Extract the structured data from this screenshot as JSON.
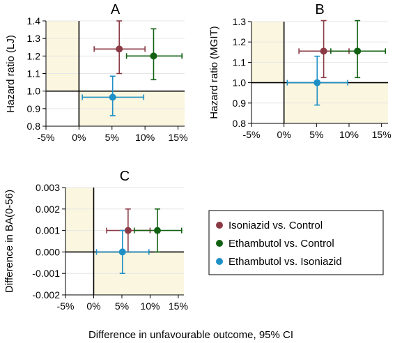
{
  "colors": {
    "background": "#ffffff",
    "shade": "#fbf6df",
    "grid": "#e6e6e6",
    "axis": "#000000",
    "isoniazid_vs_control": "#8b3a45",
    "ethambutol_vs_control": "#126112",
    "ethambutol_vs_isoniazid": "#1e90c6"
  },
  "figure": {
    "xcaption": "Difference in unfavourable outcome, 95% CI"
  },
  "legend": {
    "entries": [
      {
        "label": "Isoniazid vs. Control",
        "color": "#8b3a45"
      },
      {
        "label": "Ethambutol vs. Control",
        "color": "#126112"
      },
      {
        "label": "Ethambutol vs. Isoniazid",
        "color": "#1e90c6"
      }
    ]
  },
  "chart_data": [
    {
      "panel": "A",
      "type": "scatter",
      "title": "A",
      "xlabel": "",
      "ylabel": "Hazard ratio (LJ)",
      "xlim": [
        -5,
        16
      ],
      "ylim": [
        0.8,
        1.4
      ],
      "xticks": [
        -5,
        0,
        5,
        10,
        15
      ],
      "xticklabels": [
        "-5%",
        "0%",
        "5%",
        "10%",
        "15%"
      ],
      "yticks": [
        0.8,
        0.9,
        1.0,
        1.1,
        1.2,
        1.3,
        1.4
      ],
      "yticklabels": [
        "0.8",
        "0.9",
        "1.0",
        "1.1",
        "1.2",
        "1.3",
        "1.4"
      ],
      "ref_x": 0,
      "ref_y": 1.0,
      "grid": true,
      "series": [
        {
          "name": "Isoniazid vs. Control",
          "x": 6.1,
          "x_lo": 2.3,
          "x_hi": 10.0,
          "y": 1.24,
          "y_lo": 1.1,
          "y_hi": 1.4
        },
        {
          "name": "Ethambutol vs. Control",
          "x": 11.3,
          "x_lo": 7.2,
          "x_hi": 15.6,
          "y": 1.2,
          "y_lo": 1.065,
          "y_hi": 1.355
        },
        {
          "name": "Ethambutol vs. Isoniazid",
          "x": 5.1,
          "x_lo": 0.5,
          "x_hi": 9.8,
          "y": 0.965,
          "y_lo": 0.86,
          "y_hi": 1.085
        }
      ]
    },
    {
      "panel": "B",
      "type": "scatter",
      "title": "B",
      "xlabel": "",
      "ylabel": "Hazard ratio (MGIT)",
      "xlim": [
        -5,
        16
      ],
      "ylim": [
        0.8,
        1.3
      ],
      "xticks": [
        -5,
        0,
        5,
        10,
        15
      ],
      "xticklabels": [
        "-5%",
        "0%",
        "5%",
        "10%",
        "15%"
      ],
      "yticks": [
        0.8,
        0.9,
        1.0,
        1.1,
        1.2,
        1.3
      ],
      "yticklabels": [
        "0.8",
        "0.9",
        "1.0",
        "1.1",
        "1.2",
        "1.3"
      ],
      "ref_x": 0,
      "ref_y": 1.0,
      "grid": true,
      "series": [
        {
          "name": "Isoniazid vs. Control",
          "x": 6.1,
          "x_lo": 2.3,
          "x_hi": 10.0,
          "y": 1.155,
          "y_lo": 1.025,
          "y_hi": 1.305
        },
        {
          "name": "Ethambutol vs. Control",
          "x": 11.3,
          "x_lo": 7.2,
          "x_hi": 15.6,
          "y": 1.155,
          "y_lo": 1.025,
          "y_hi": 1.305
        },
        {
          "name": "Ethambutol vs. Isoniazid",
          "x": 5.1,
          "x_lo": 0.5,
          "x_hi": 9.8,
          "y": 1.0,
          "y_lo": 0.89,
          "y_hi": 1.13
        }
      ]
    },
    {
      "panel": "C",
      "type": "scatter",
      "title": "C",
      "xlabel": "",
      "ylabel": "Difference in BA(0-56)",
      "xlim": [
        -5,
        16
      ],
      "ylim": [
        -0.002,
        0.003
      ],
      "xticks": [
        -5,
        0,
        5,
        10,
        15
      ],
      "xticklabels": [
        "-5%",
        "0%",
        "5%",
        "10%",
        "15%"
      ],
      "yticks": [
        -0.002,
        -0.001,
        0.0,
        0.001,
        0.002,
        0.003
      ],
      "yticklabels": [
        "-0.002",
        "-0.001",
        "0.000",
        "0.001",
        "0.002",
        "0.003"
      ],
      "ref_x": 0,
      "ref_y": 0.0,
      "grid": true,
      "series": [
        {
          "name": "Isoniazid vs. Control",
          "x": 6.1,
          "x_lo": 2.3,
          "x_hi": 10.0,
          "y": 0.001,
          "y_lo": 0.0,
          "y_hi": 0.002
        },
        {
          "name": "Ethambutol vs. Control",
          "x": 11.3,
          "x_lo": 7.2,
          "x_hi": 15.6,
          "y": 0.001,
          "y_lo": 0.0,
          "y_hi": 0.002
        },
        {
          "name": "Ethambutol vs. Isoniazid",
          "x": 5.1,
          "x_lo": 0.5,
          "x_hi": 9.8,
          "y": 0.0,
          "y_lo": -0.001,
          "y_hi": 0.001
        }
      ]
    }
  ]
}
